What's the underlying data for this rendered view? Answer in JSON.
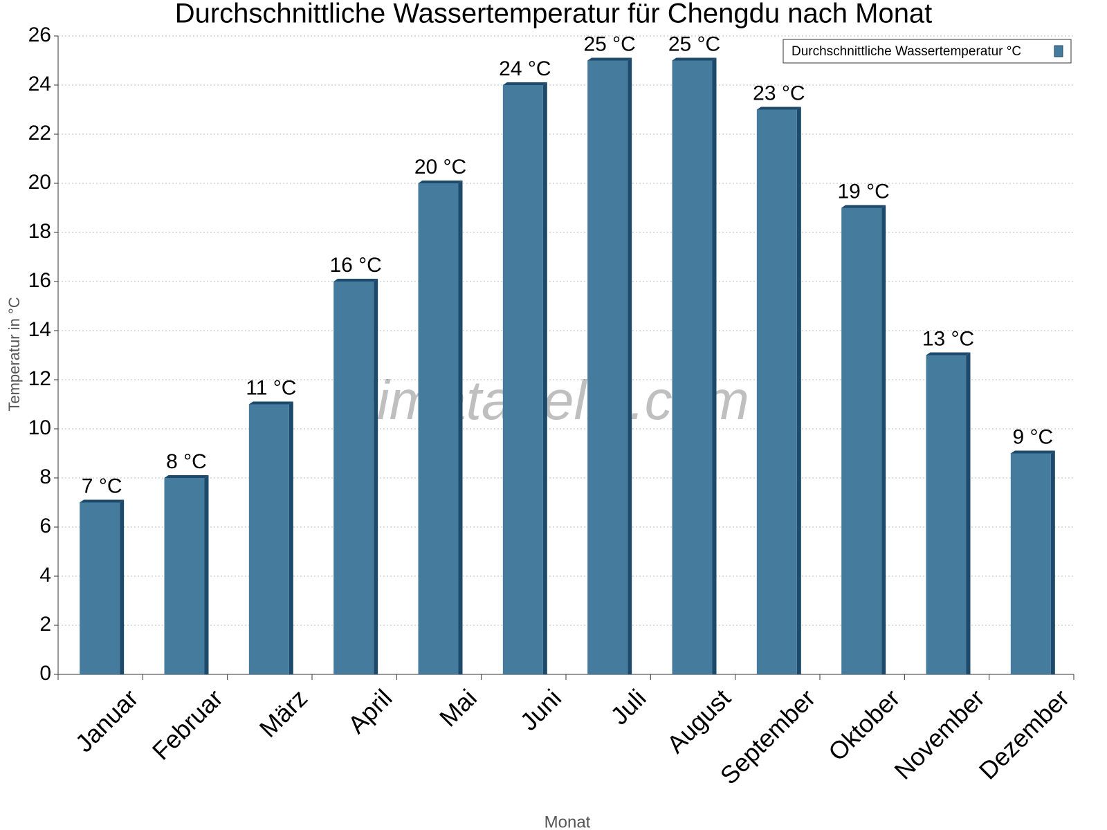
{
  "chart_data": {
    "type": "bar",
    "title": "Durchschnittliche Wassertemperatur für Chengdu nach Monat",
    "x_label": "Monat",
    "y_label": "Temperatur in °C",
    "watermark": "klimatabelle.com",
    "categories": [
      "Januar",
      "Februar",
      "März",
      "April",
      "Mai",
      "Juni",
      "Juli",
      "August",
      "September",
      "Oktober",
      "November",
      "Dezember"
    ],
    "series": [
      {
        "name": "Durchschnittliche Wassertemperatur °C",
        "color": "#457b9d",
        "values": [
          7,
          8,
          11,
          16,
          20,
          24,
          25,
          25,
          23,
          19,
          13,
          9
        ],
        "value_labels": [
          "7 °C",
          "8 °C",
          "11 °C",
          "16 °C",
          "20 °C",
          "24 °C",
          "25 °C",
          "25 °C",
          "23 °C",
          "19 °C",
          "13 °C",
          "9 °C"
        ]
      }
    ],
    "ylim": [
      0,
      26
    ],
    "yticks": [
      0,
      2,
      4,
      6,
      8,
      10,
      12,
      14,
      16,
      18,
      20,
      22,
      24,
      26
    ],
    "grid": true,
    "legend": "top-right"
  }
}
